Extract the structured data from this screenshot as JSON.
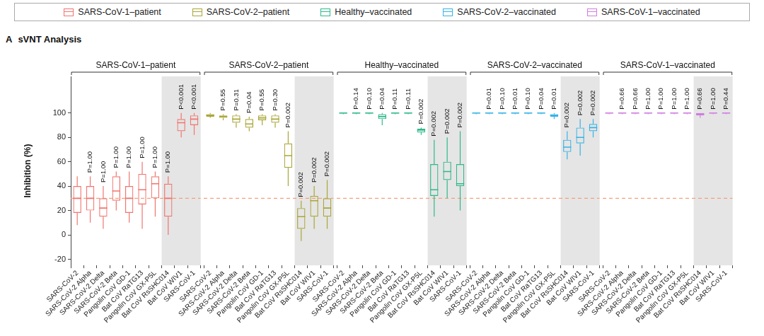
{
  "panel_label": "A",
  "title": "sVNT Analysis",
  "legend": "top",
  "chart_data": [
    {
      "type": "box",
      "y_label": "Inhibition (%)",
      "tick_labels": true,
      "grid": false,
      "categories": [
        "SARS-CoV-2",
        "SARS-CoV-2 Alpha",
        "SARS-CoV-2 Delta",
        "SARS-CoV-2 Beta",
        "Pangolin CoV GD-1",
        "Bat CoV RaTG13",
        "Pangolin CoV GX-P5L",
        "Bat CoV RsSHC014",
        "Bat CoV WIV1",
        "SARS-CoV-1"
      ],
      "highlight": [
        "Bat CoV RsSHC014",
        "Bat CoV WIV1",
        "SARS-CoV-1"
      ],
      "reference_line": 30,
      "ylim": [
        -25,
        130
      ],
      "yticks": [
        -20,
        0,
        20,
        40,
        60,
        80,
        100
      ],
      "p_values": [
        null,
        "P=1.00",
        "P=1.00",
        "P=1.00",
        "P=1.00",
        "P=1.00",
        "P=1.00",
        "P=1.00",
        "P<0.001",
        "P<0.001"
      ],
      "series": [
        {
          "name": "SARS-CoV-1–patient",
          "color": "#f0756f",
          "min": [
            8,
            10,
            5,
            20,
            10,
            5,
            15,
            0,
            80,
            82
          ],
          "q1": [
            18,
            20,
            15,
            28,
            18,
            25,
            30,
            15,
            85,
            90
          ],
          "median": [
            30,
            30,
            22,
            36,
            30,
            37,
            42,
            30,
            92,
            95
          ],
          "q3": [
            40,
            40,
            30,
            48,
            40,
            50,
            48,
            42,
            95,
            98
          ],
          "max": [
            48,
            48,
            40,
            52,
            52,
            60,
            52,
            48,
            100,
            100
          ]
        }
      ]
    },
    {
      "type": "box",
      "tick_labels": "x",
      "grid": false,
      "categories": [
        "SARS-CoV-2",
        "SARS-CoV-2 Alpha",
        "SARS-CoV-2 Delta",
        "SARS-CoV-2 Beta",
        "Pangolin CoV GD-1",
        "Bat CoV RaTG13",
        "Pangolin CoV GX-P5L",
        "Bat CoV RsSHC014",
        "Bat CoV WIV1",
        "SARS-CoV-1"
      ],
      "highlight": [
        "Bat CoV RsSHC014",
        "Bat CoV WIV1",
        "SARS-CoV-1"
      ],
      "reference_line": 30,
      "ylim": [
        -25,
        130
      ],
      "yticks": [
        -20,
        0,
        20,
        40,
        60,
        80,
        100
      ],
      "p_values": [
        null,
        "P=0.55",
        "P=0.31",
        "P=0.04",
        "P=0.55",
        "P=0.30",
        "P=0.002",
        "P=0.002",
        "P=0.002",
        "P=0.002"
      ],
      "series": [
        {
          "name": "SARS-CoV-2–patient",
          "color": "#a9a637",
          "min": [
            96,
            94,
            88,
            85,
            90,
            88,
            40,
            -5,
            5,
            5
          ],
          "q1": [
            97,
            96,
            92,
            88,
            94,
            92,
            55,
            5,
            15,
            15
          ],
          "median": [
            98,
            97,
            95,
            91,
            96,
            95,
            65,
            15,
            28,
            22
          ],
          "q3": [
            99,
            98,
            98,
            95,
            98,
            98,
            75,
            22,
            32,
            30
          ],
          "max": [
            100,
            99,
            99,
            97,
            99,
            99,
            85,
            28,
            40,
            45
          ]
        }
      ]
    },
    {
      "type": "box",
      "tick_labels": "x",
      "grid": false,
      "categories": [
        "SARS-CoV-2",
        "SARS-CoV-2 Alpha",
        "SARS-CoV-2 Delta",
        "SARS-CoV-2 Beta",
        "Pangolin CoV GD-1",
        "Bat CoV RaTG13",
        "Pangolin CoV GX-P5L",
        "Bat CoV RsSHC014",
        "Bat CoV WIV1",
        "SARS-CoV-1"
      ],
      "highlight": [
        "Bat CoV RsSHC014",
        "Bat CoV WIV1",
        "SARS-CoV-1"
      ],
      "reference_line": 30,
      "ylim": [
        -25,
        130
      ],
      "yticks": [
        -20,
        0,
        20,
        40,
        60,
        80,
        100
      ],
      "p_values": [
        null,
        "P=0.14",
        "P=0.10",
        "P=0.04",
        "P=0.11",
        "P=0.11",
        "P=0.002",
        "P=0.002",
        "P=0.002",
        "P=0.002"
      ],
      "series": [
        {
          "name": "Healthy–vaccinated",
          "color": "#2fb98a",
          "min": [
            99,
            99,
            99,
            90,
            99,
            99,
            82,
            15,
            30,
            20
          ],
          "q1": [
            99.5,
            99.5,
            99.5,
            95,
            99.5,
            99.5,
            84,
            32,
            45,
            40
          ],
          "median": [
            100,
            100,
            100,
            97,
            100,
            100,
            86,
            37,
            52,
            42
          ],
          "q3": [
            100,
            100,
            100,
            99,
            100,
            100,
            87,
            58,
            60,
            58
          ],
          "max": [
            100,
            100,
            100,
            100,
            100,
            100,
            88,
            78,
            80,
            85
          ]
        }
      ]
    },
    {
      "type": "box",
      "tick_labels": "x",
      "grid": false,
      "categories": [
        "SARS-CoV-2",
        "SARS-CoV-2 Alpha",
        "SARS-CoV-2 Delta",
        "SARS-CoV-2 Beta",
        "Pangolin CoV GD-1",
        "Bat CoV RaTG13",
        "Pangolin CoV GX-P5L",
        "Bat CoV RsSHC014",
        "Bat CoV WIV1",
        "SARS-CoV-1"
      ],
      "highlight": [
        "Bat CoV RsSHC014",
        "Bat CoV WIV1",
        "SARS-CoV-1"
      ],
      "reference_line": 30,
      "ylim": [
        -25,
        130
      ],
      "yticks": [
        -20,
        0,
        20,
        40,
        60,
        80,
        100
      ],
      "p_values": [
        null,
        "P=0.01",
        "P=0.10",
        "P=0.01",
        "P=0.10",
        "P=0.04",
        "P=0.01",
        "P=0.002",
        "P=0.002",
        "P=0.002"
      ],
      "series": [
        {
          "name": "SARS-CoV-2–vaccinated",
          "color": "#35b3e6",
          "min": [
            99,
            99,
            99,
            99,
            99,
            99,
            95,
            62,
            65,
            80
          ],
          "q1": [
            99.5,
            99.5,
            99.5,
            99.5,
            99.5,
            99.5,
            97,
            68,
            75,
            85
          ],
          "median": [
            100,
            100,
            100,
            100,
            100,
            100,
            98,
            72,
            80,
            88
          ],
          "q3": [
            100,
            100,
            100,
            100,
            100,
            100,
            99,
            78,
            88,
            91
          ],
          "max": [
            100,
            100,
            100,
            100,
            100,
            100,
            100,
            85,
            95,
            95
          ]
        }
      ]
    },
    {
      "type": "box",
      "tick_labels": "x",
      "grid": false,
      "categories": [
        "SARS-CoV-2",
        "SARS-CoV-2 Alpha",
        "SARS-CoV-2 Delta",
        "SARS-CoV-2 Beta",
        "Pangolin CoV GD-1",
        "Bat CoV RaTG13",
        "Pangolin CoV GX-P5L",
        "Bat CoV RsSHC014",
        "Bat CoV WIV1",
        "SARS-CoV-1"
      ],
      "highlight": [
        "Bat CoV RsSHC014",
        "Bat CoV WIV1",
        "SARS-CoV-1"
      ],
      "reference_line": 30,
      "ylim": [
        -25,
        130
      ],
      "yticks": [
        -20,
        0,
        20,
        40,
        60,
        80,
        100
      ],
      "p_values": [
        null,
        "P=0.66",
        "P=0.66",
        "P=1.00",
        "P=1.00",
        "P=1.00",
        "P=1.00",
        "P=0.66",
        "P=1.00",
        "P=0.44"
      ],
      "series": [
        {
          "name": "SARS-CoV-1–vaccinated",
          "color": "#cf7ddf",
          "min": [
            99,
            99,
            99,
            99,
            99,
            99,
            99,
            96,
            99,
            99
          ],
          "q1": [
            99.5,
            99.5,
            99.5,
            99.5,
            99.5,
            99.5,
            99.5,
            98,
            99.5,
            99.5
          ],
          "median": [
            100,
            100,
            100,
            100,
            100,
            100,
            100,
            99,
            100,
            100
          ],
          "q3": [
            100,
            100,
            100,
            100,
            100,
            100,
            100,
            100,
            100,
            100
          ],
          "max": [
            100,
            100,
            100,
            100,
            100,
            100,
            100,
            100,
            100,
            100
          ]
        }
      ]
    }
  ]
}
